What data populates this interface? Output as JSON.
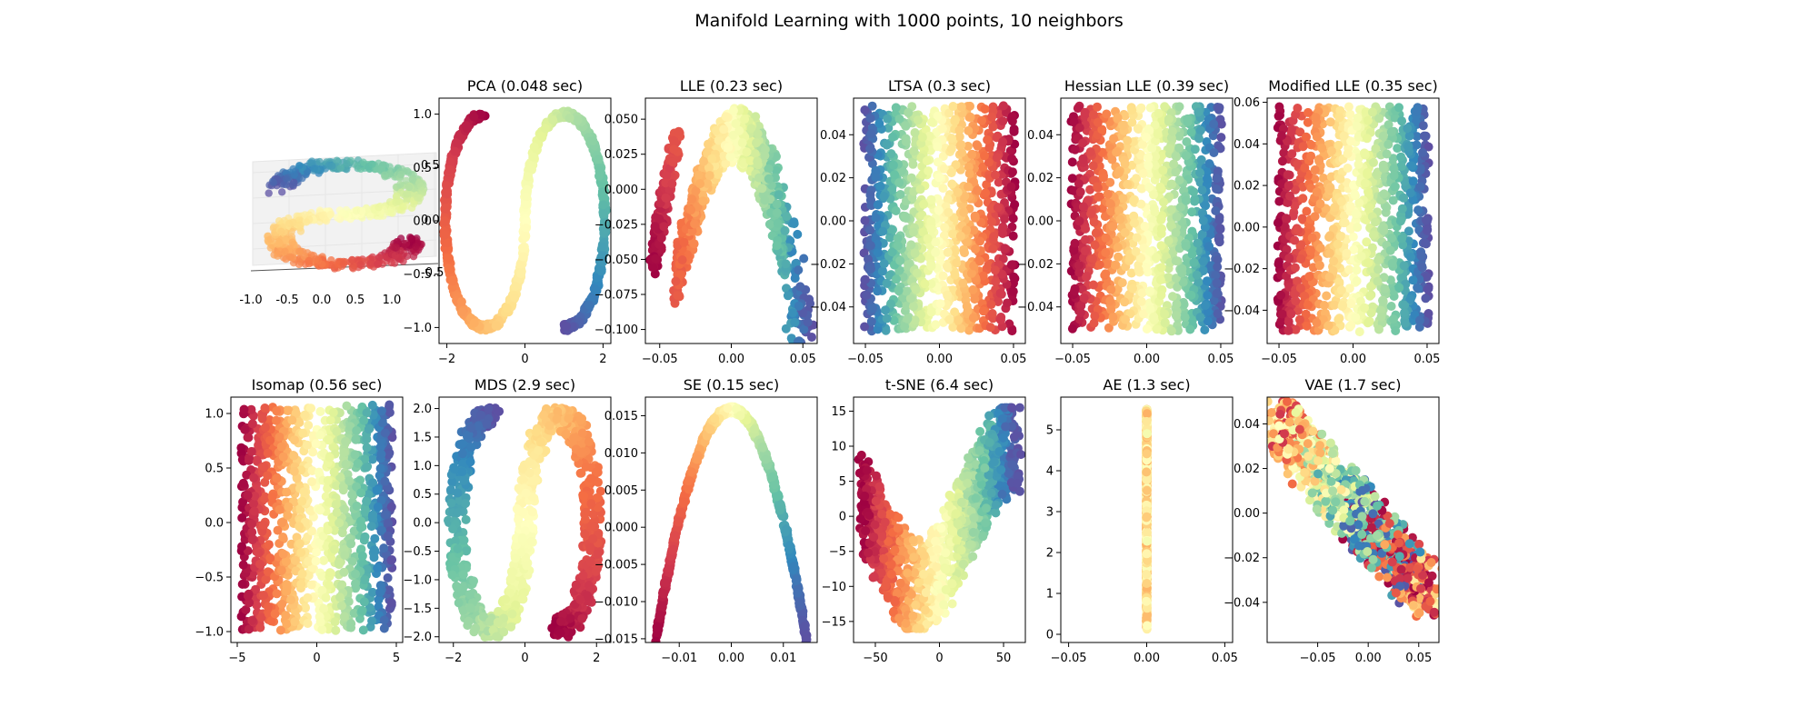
{
  "title": "Manifold Learning with 1000 points, 10 neighbors",
  "colormap": [
    "#9e0142",
    "#d53e4f",
    "#f46d43",
    "#fdae61",
    "#fee08b",
    "#ffffbf",
    "#e6f598",
    "#abdda4",
    "#66c2a5",
    "#3288bd",
    "#5e4fa2"
  ],
  "chart_data": [
    {
      "id": "scurve-3d",
      "type": "scatter",
      "projection": "3d",
      "title": "",
      "xticks": [
        "-1.0",
        "-0.5",
        "0.0",
        "0.5",
        "1.0"
      ],
      "xlim": [
        -1.0,
        1.0
      ],
      "zticks": [
        "-0.5",
        "0.0",
        "0.5"
      ],
      "zlim": [
        -0.5,
        0.5
      ]
    },
    {
      "id": "pca",
      "type": "scatter",
      "title": "PCA (0.048 sec)",
      "shape": "s-curve-outline",
      "xlim": [
        -2.2,
        2.2
      ],
      "ylim": [
        -1.15,
        1.15
      ],
      "xticks": [
        -2,
        0,
        2
      ],
      "xticklabels": [
        "−2",
        "0",
        "2"
      ],
      "yticks": [
        -1.0,
        -0.5,
        0.0,
        0.5,
        1.0
      ],
      "yticklabels": [
        "−1.0",
        "−0.5",
        "0.0",
        "0.5",
        "1.0"
      ]
    },
    {
      "id": "lle",
      "type": "scatter",
      "title": "LLE (0.23 sec)",
      "shape": "arch",
      "xlim": [
        -0.06,
        0.06
      ],
      "ylim": [
        -0.11,
        0.065
      ],
      "xticks": [
        -0.05,
        0.0,
        0.05
      ],
      "xticklabels": [
        "−0.05",
        "0.00",
        "0.05"
      ],
      "yticks": [
        -0.1,
        -0.075,
        -0.05,
        -0.025,
        0.0,
        0.025,
        0.05
      ],
      "yticklabels": [
        "−0.100",
        "−0.075",
        "−0.050",
        "−0.025",
        "0.000",
        "0.025",
        "0.050"
      ]
    },
    {
      "id": "ltsa",
      "type": "scatter",
      "title": "LTSA (0.3 sec)",
      "shape": "rectangle",
      "reverse": true,
      "xlim": [
        -0.058,
        0.058
      ],
      "ylim": [
        -0.057,
        0.057
      ],
      "xticks": [
        -0.05,
        0.0,
        0.05
      ],
      "xticklabels": [
        "−0.05",
        "0.00",
        "0.05"
      ],
      "yticks": [
        -0.04,
        -0.02,
        0.0,
        0.02,
        0.04
      ],
      "yticklabels": [
        "−0.04",
        "−0.02",
        "0.00",
        "0.02",
        "0.04"
      ]
    },
    {
      "id": "hessian-lle",
      "type": "scatter",
      "title": "Hessian LLE (0.39 sec)",
      "shape": "rectangle",
      "reverse": false,
      "xlim": [
        -0.058,
        0.058
      ],
      "ylim": [
        -0.057,
        0.057
      ],
      "xticks": [
        -0.05,
        0.0,
        0.05
      ],
      "xticklabels": [
        "−0.05",
        "0.00",
        "0.05"
      ],
      "yticks": [
        -0.04,
        -0.02,
        0.0,
        0.02,
        0.04
      ],
      "yticklabels": [
        "−0.04",
        "−0.02",
        "0.00",
        "0.02",
        "0.04"
      ]
    },
    {
      "id": "modified-lle",
      "type": "scatter",
      "title": "Modified LLE (0.35 sec)",
      "shape": "rectangle",
      "reverse": false,
      "xlim": [
        -0.058,
        0.058
      ],
      "ylim": [
        -0.056,
        0.062
      ],
      "xticks": [
        -0.05,
        0.0,
        0.05
      ],
      "xticklabels": [
        "−0.05",
        "0.00",
        "0.05"
      ],
      "yticks": [
        -0.04,
        -0.02,
        0.0,
        0.02,
        0.04,
        0.06
      ],
      "yticklabels": [
        "−0.04",
        "−0.02",
        "0.00",
        "0.02",
        "0.04",
        "0.06"
      ]
    },
    {
      "id": "isomap",
      "type": "scatter",
      "title": "Isomap (0.56 sec)",
      "shape": "rectangle",
      "reverse": false,
      "xlim": [
        -5.4,
        5.4
      ],
      "ylim": [
        -1.1,
        1.15
      ],
      "xticks": [
        -5,
        0,
        5
      ],
      "xticklabels": [
        "−5",
        "0",
        "5"
      ],
      "yticks": [
        -1.0,
        -0.5,
        0.0,
        0.5,
        1.0
      ],
      "yticklabels": [
        "−1.0",
        "−0.5",
        "0.0",
        "0.5",
        "1.0"
      ]
    },
    {
      "id": "mds",
      "type": "scatter",
      "title": "MDS (2.9 sec)",
      "shape": "s-curve-thick",
      "xlim": [
        -2.4,
        2.4
      ],
      "ylim": [
        -2.1,
        2.2
      ],
      "xticks": [
        -2,
        0,
        2
      ],
      "xticklabels": [
        "−2",
        "0",
        "2"
      ],
      "yticks": [
        -2.0,
        -1.5,
        -1.0,
        -0.5,
        0.0,
        0.5,
        1.0,
        1.5,
        2.0
      ],
      "yticklabels": [
        "−2.0",
        "−1.5",
        "−1.0",
        "−0.5",
        "0.0",
        "0.5",
        "1.0",
        "1.5",
        "2.0"
      ]
    },
    {
      "id": "se",
      "type": "scatter",
      "title": "SE (0.15 sec)",
      "shape": "parabola",
      "xlim": [
        -0.0165,
        0.0165
      ],
      "ylim": [
        -0.0155,
        0.0175
      ],
      "xticks": [
        -0.01,
        0.0,
        0.01
      ],
      "xticklabels": [
        "−0.01",
        "0.00",
        "0.01"
      ],
      "yticks": [
        -0.015,
        -0.01,
        -0.005,
        0.0,
        0.005,
        0.01,
        0.015
      ],
      "yticklabels": [
        "−0.015",
        "−0.010",
        "−0.005",
        "0.000",
        "0.005",
        "0.010",
        "0.015"
      ]
    },
    {
      "id": "tsne",
      "type": "scatter",
      "title": "t-SNE (6.4 sec)",
      "shape": "s-band",
      "xlim": [
        -67,
        67
      ],
      "ylim": [
        -18,
        17
      ],
      "xticks": [
        -50,
        0,
        50
      ],
      "xticklabels": [
        "−50",
        "0",
        "50"
      ],
      "yticks": [
        -15,
        -10,
        -5,
        0,
        5,
        10,
        15
      ],
      "yticklabels": [
        "−15",
        "−10",
        "−5",
        "0",
        "5",
        "10",
        "15"
      ]
    },
    {
      "id": "ae",
      "type": "scatter",
      "title": "AE (1.3 sec)",
      "shape": "vertical-line",
      "xlim": [
        -0.055,
        0.055
      ],
      "ylim": [
        -0.2,
        5.8
      ],
      "xticks": [
        -0.05,
        0.0,
        0.05
      ],
      "xticklabels": [
        "−0.05",
        "0.00",
        "0.05"
      ],
      "yticks": [
        0,
        1,
        2,
        3,
        4,
        5
      ],
      "yticklabels": [
        "0",
        "1",
        "2",
        "3",
        "4",
        "5"
      ]
    },
    {
      "id": "vae",
      "type": "scatter",
      "title": "VAE (1.7 sec)",
      "shape": "diagonal-cloud",
      "xlim": [
        -0.1,
        0.07
      ],
      "ylim": [
        -0.058,
        0.052
      ],
      "xticks": [
        -0.05,
        0.0,
        0.05
      ],
      "xticklabels": [
        "−0.05",
        "0.00",
        "0.05"
      ],
      "yticks": [
        -0.04,
        -0.02,
        0.0,
        0.02,
        0.04
      ],
      "yticklabels": [
        "−0.04",
        "−0.02",
        "0.00",
        "0.02",
        "0.04"
      ]
    }
  ]
}
